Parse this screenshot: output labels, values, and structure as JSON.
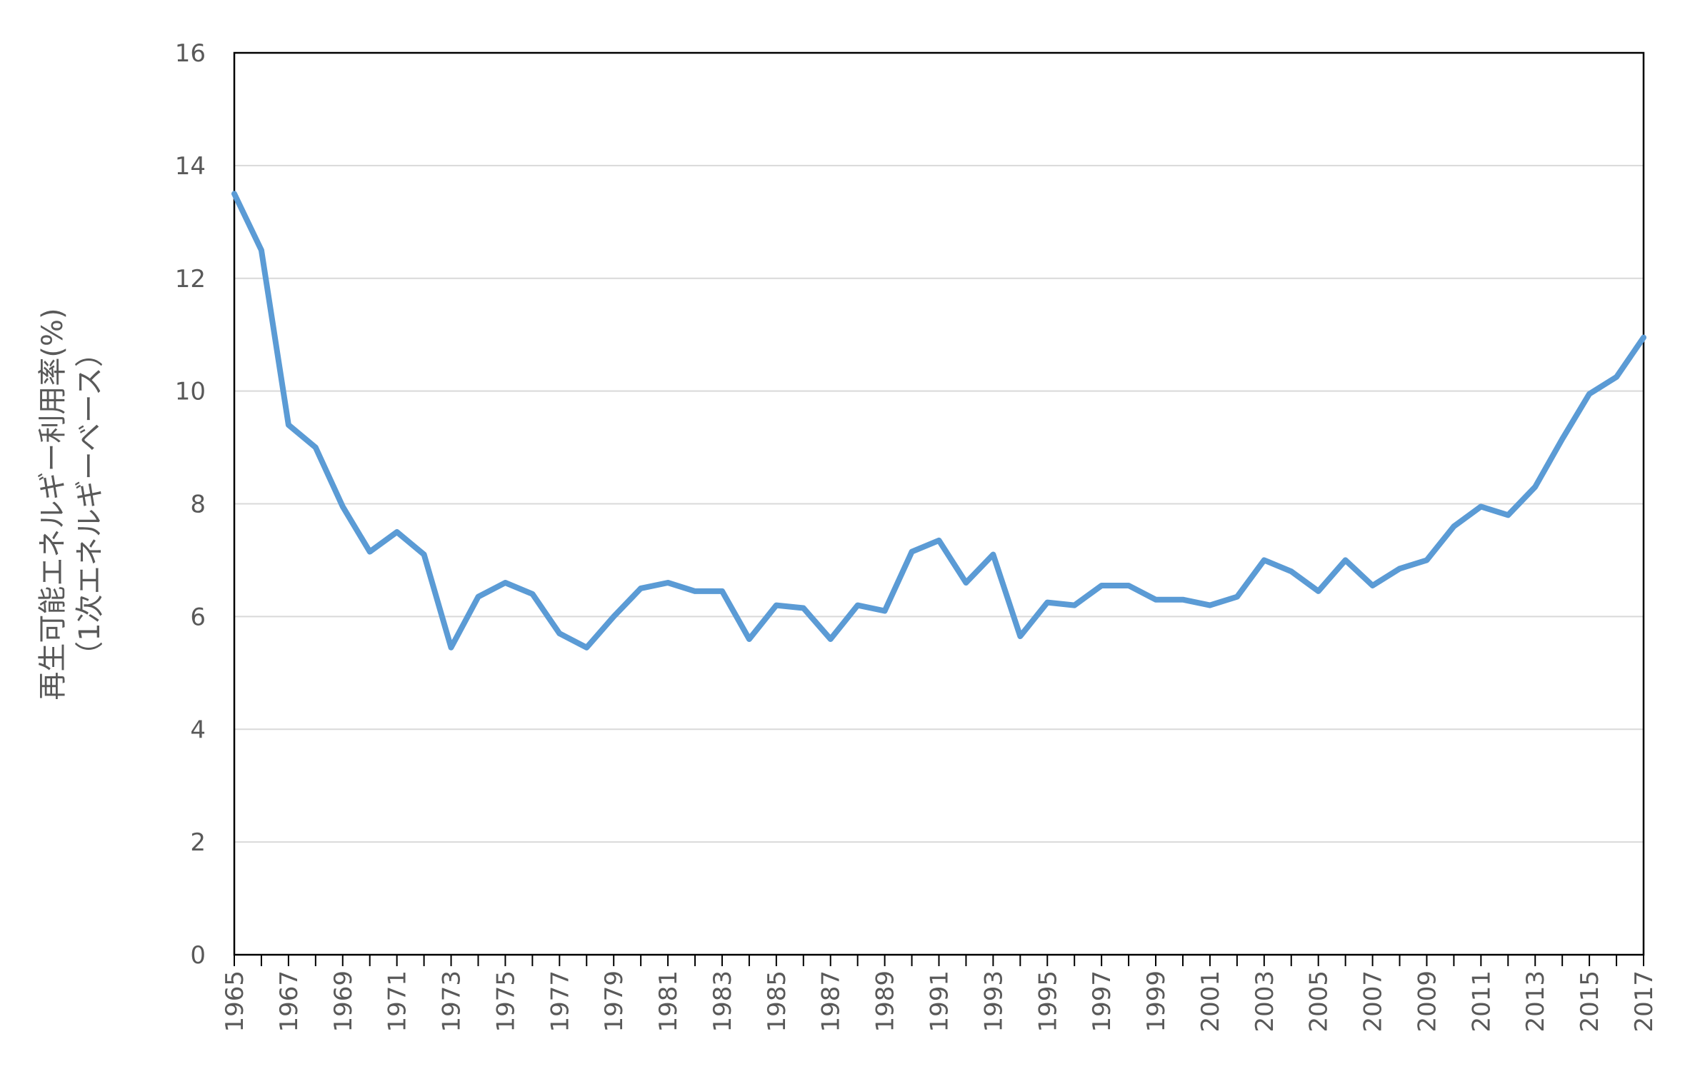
{
  "chart_data": {
    "type": "line",
    "title": "",
    "ylabel_line1": "再生可能エネルギー利用率(%)",
    "ylabel_line2": "（1次エネルギーベース）",
    "xlabel": "",
    "ylim": [
      0,
      16
    ],
    "yticks": [
      "0",
      "2",
      "4",
      "6",
      "8",
      "10",
      "12",
      "14",
      "16"
    ],
    "grid": "horizontal",
    "legend": "none",
    "line_color": "#5B9BD5",
    "x": [
      1965,
      1966,
      1967,
      1968,
      1969,
      1970,
      1971,
      1972,
      1973,
      1974,
      1975,
      1976,
      1977,
      1978,
      1979,
      1980,
      1981,
      1982,
      1983,
      1984,
      1985,
      1986,
      1987,
      1988,
      1989,
      1990,
      1991,
      1992,
      1993,
      1994,
      1995,
      1996,
      1997,
      1998,
      1999,
      2000,
      2001,
      2002,
      2003,
      2004,
      2005,
      2006,
      2007,
      2008,
      2009,
      2010,
      2011,
      2012,
      2013,
      2014,
      2015,
      2016,
      2017
    ],
    "xtick_labels": [
      "1965",
      "1967",
      "1969",
      "1971",
      "1973",
      "1975",
      "1977",
      "1979",
      "1981",
      "1983",
      "1985",
      "1987",
      "1989",
      "1991",
      "1993",
      "1995",
      "1997",
      "1999",
      "2001",
      "2003",
      "2005",
      "2007",
      "2009",
      "2011",
      "2013",
      "2015",
      "2017"
    ],
    "series": [
      {
        "values": [
          13.5,
          12.5,
          9.4,
          9.0,
          7.95,
          7.15,
          7.5,
          7.1,
          5.45,
          6.35,
          6.6,
          6.4,
          5.7,
          5.45,
          6.0,
          6.5,
          6.6,
          6.45,
          6.45,
          5.6,
          6.2,
          6.15,
          5.6,
          6.2,
          6.1,
          7.15,
          7.35,
          6.6,
          7.1,
          5.65,
          6.25,
          6.2,
          6.55,
          6.55,
          6.3,
          6.3,
          6.2,
          6.35,
          7.0,
          6.8,
          6.45,
          7.0,
          6.55,
          6.85,
          7.0,
          7.6,
          7.95,
          7.8,
          8.3,
          9.15,
          9.95,
          10.25,
          10.95
        ]
      }
    ]
  }
}
